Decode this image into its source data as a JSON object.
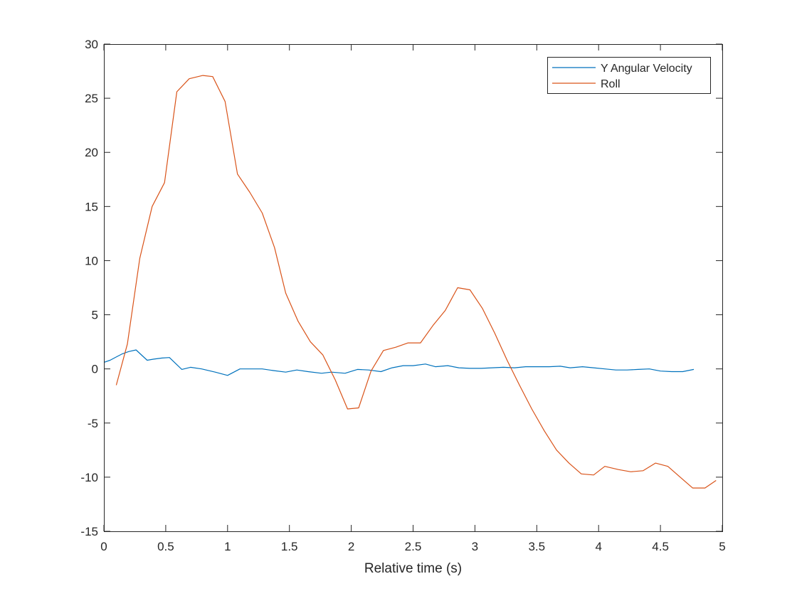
{
  "chart_data": {
    "type": "line",
    "title": "",
    "xlabel": "Relative time (s)",
    "ylabel": "",
    "xlim": [
      0,
      5
    ],
    "ylim": [
      -15,
      30
    ],
    "xticks": [
      0,
      0.5,
      1,
      1.5,
      2,
      2.5,
      3,
      3.5,
      4,
      4.5,
      5
    ],
    "xtick_labels": [
      "0",
      "0.5",
      "1",
      "1.5",
      "2",
      "2.5",
      "3",
      "3.5",
      "4",
      "4.5",
      "5"
    ],
    "yticks": [
      -15,
      -10,
      -5,
      0,
      5,
      10,
      15,
      20,
      25,
      30
    ],
    "ytick_labels": [
      "-15",
      "-10",
      "-5",
      "0",
      "5",
      "10",
      "15",
      "20",
      "25",
      "30"
    ],
    "grid": false,
    "legend_position": "top-right",
    "series": [
      {
        "name": "Y Angular Velocity",
        "color": "#0072BD",
        "x": [
          0,
          0.05,
          0.1,
          0.15,
          0.2,
          0.26,
          0.35,
          0.4,
          0.47,
          0.53,
          0.63,
          0.7,
          0.79,
          0.9,
          1.0,
          1.1,
          1.2,
          1.28,
          1.37,
          1.47,
          1.56,
          1.65,
          1.76,
          1.84,
          1.95,
          2.05,
          2.14,
          2.24,
          2.33,
          2.42,
          2.5,
          2.6,
          2.68,
          2.78,
          2.87,
          2.96,
          3.05,
          3.14,
          3.23,
          3.32,
          3.41,
          3.51,
          3.6,
          3.69,
          3.77,
          3.87,
          3.96,
          4.05,
          4.14,
          4.23,
          4.32,
          4.41,
          4.5,
          4.59,
          4.68,
          4.77
        ],
        "y": [
          0.6,
          0.8,
          1.1,
          1.4,
          1.6,
          1.75,
          0.8,
          0.9,
          1.0,
          1.05,
          -0.05,
          0.15,
          0.0,
          -0.3,
          -0.6,
          0.0,
          0.0,
          0.0,
          -0.15,
          -0.3,
          -0.1,
          -0.25,
          -0.4,
          -0.3,
          -0.4,
          -0.05,
          -0.1,
          -0.25,
          0.1,
          0.3,
          0.3,
          0.45,
          0.2,
          0.3,
          0.1,
          0.05,
          0.05,
          0.1,
          0.15,
          0.1,
          0.2,
          0.2,
          0.2,
          0.25,
          0.1,
          0.2,
          0.1,
          0.0,
          -0.1,
          -0.1,
          -0.05,
          0.0,
          -0.2,
          -0.25,
          -0.25,
          -0.05
        ]
      },
      {
        "name": "Roll",
        "color": "#D95319",
        "x": [
          0.1,
          0.19,
          0.29,
          0.39,
          0.49,
          0.59,
          0.69,
          0.8,
          0.88,
          0.98,
          1.08,
          1.18,
          1.28,
          1.38,
          1.47,
          1.57,
          1.67,
          1.77,
          1.87,
          1.97,
          2.06,
          2.16,
          2.26,
          2.36,
          2.46,
          2.56,
          2.66,
          2.76,
          2.86,
          2.96,
          3.06,
          3.16,
          3.26,
          3.36,
          3.46,
          3.56,
          3.66,
          3.76,
          3.86,
          3.96,
          4.05,
          4.16,
          4.26,
          4.36,
          4.46,
          4.56,
          4.66,
          4.76,
          4.86,
          4.95
        ],
        "y": [
          -1.5,
          2.3,
          10.2,
          15.0,
          17.2,
          25.6,
          26.8,
          27.1,
          27.0,
          24.7,
          18.0,
          16.3,
          14.4,
          11.2,
          7.0,
          4.4,
          2.5,
          1.3,
          -1.0,
          -3.7,
          -3.6,
          -0.2,
          1.7,
          2.0,
          2.4,
          2.4,
          4.0,
          5.4,
          7.5,
          7.3,
          5.6,
          3.3,
          0.8,
          -1.5,
          -3.7,
          -5.7,
          -7.5,
          -8.7,
          -9.7,
          -9.8,
          -9.0,
          -9.3,
          -9.5,
          -9.4,
          -8.7,
          -9.0,
          -10.0,
          -11.0,
          -11.0,
          -10.3
        ]
      }
    ]
  }
}
